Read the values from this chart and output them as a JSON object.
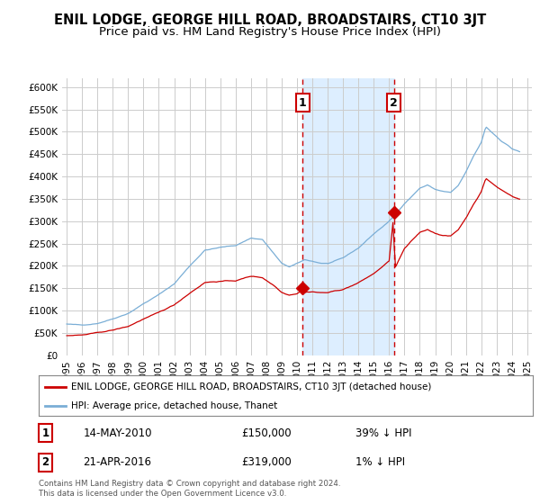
{
  "title": "ENIL LODGE, GEORGE HILL ROAD, BROADSTAIRS, CT10 3JT",
  "subtitle": "Price paid vs. HM Land Registry's House Price Index (HPI)",
  "title_fontsize": 10.5,
  "subtitle_fontsize": 9.5,
  "background_color": "#ffffff",
  "plot_bg_color": "#ffffff",
  "grid_color": "#cccccc",
  "ylim": [
    0,
    620000
  ],
  "yticks": [
    0,
    50000,
    100000,
    150000,
    200000,
    250000,
    300000,
    350000,
    400000,
    450000,
    500000,
    550000,
    600000
  ],
  "ytick_labels": [
    "£0",
    "£50K",
    "£100K",
    "£150K",
    "£200K",
    "£250K",
    "£300K",
    "£350K",
    "£400K",
    "£450K",
    "£500K",
    "£550K",
    "£600K"
  ],
  "xlim_start": 1994.7,
  "xlim_end": 2025.3,
  "xtick_years": [
    1995,
    1996,
    1997,
    1998,
    1999,
    2000,
    2001,
    2002,
    2003,
    2004,
    2005,
    2006,
    2007,
    2008,
    2009,
    2010,
    2011,
    2012,
    2013,
    2014,
    2015,
    2016,
    2017,
    2018,
    2019,
    2020,
    2021,
    2022,
    2023,
    2024,
    2025
  ],
  "sale1_x": 2010.37,
  "sale1_y": 150000,
  "sale1_label": "1",
  "sale1_date": "14-MAY-2010",
  "sale1_price": "£150,000",
  "sale1_hpi": "39% ↓ HPI",
  "sale2_x": 2016.31,
  "sale2_y": 319000,
  "sale2_label": "2",
  "sale2_date": "21-APR-2016",
  "sale2_price": "£319,000",
  "sale2_hpi": "1% ↓ HPI",
  "vline_color": "#cc0000",
  "shade_color": "#ddeeff",
  "hpi_line_color": "#7aaed6",
  "price_line_color": "#cc0000",
  "legend_label_price": "ENIL LODGE, GEORGE HILL ROAD, BROADSTAIRS, CT10 3JT (detached house)",
  "legend_label_hpi": "HPI: Average price, detached house, Thanet",
  "footnote": "Contains HM Land Registry data © Crown copyright and database right 2024.\nThis data is licensed under the Open Government Licence v3.0."
}
